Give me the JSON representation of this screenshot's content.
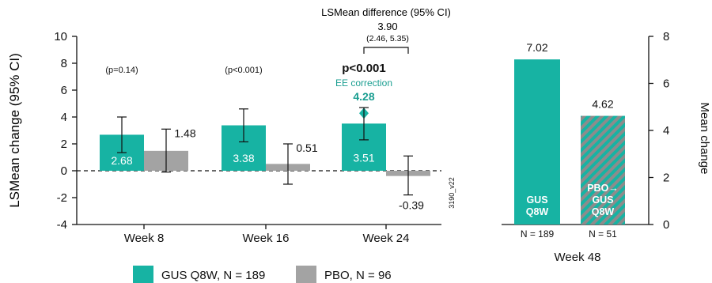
{
  "colors": {
    "gus": "#17b3a3",
    "pbo": "#a3a3a3",
    "stripe": "#8c8c8c",
    "accent": "#1a9e91",
    "axis": "#111111"
  },
  "chart_data": [
    {
      "type": "bar",
      "categories": [
        "Week 8",
        "Week 16",
        "Week 24"
      ],
      "ylabel": "LSMean change (95% CI)",
      "ylim": [
        -4,
        10
      ],
      "yticks": [
        -4,
        -2,
        0,
        2,
        4,
        6,
        8,
        10
      ],
      "ytick_labels": [
        "-4",
        "-2",
        "0",
        "2",
        "4",
        "6",
        "8",
        "10"
      ],
      "baseline": 0,
      "series": [
        {
          "name": "GUS Q8W, N = 189",
          "values": [
            2.68,
            3.38,
            3.51
          ],
          "labels": [
            "2.68",
            "3.38",
            "3.51"
          ],
          "ci_low": [
            1.35,
            2.15,
            2.3
          ],
          "ci_high": [
            4.0,
            4.6,
            4.7
          ]
        },
        {
          "name": "PBO, N = 96",
          "values": [
            1.48,
            0.51,
            -0.39
          ],
          "labels": [
            "1.48",
            "0.51",
            "-0.39"
          ],
          "ci_low": [
            -0.1,
            -1.0,
            -1.8
          ],
          "ci_high": [
            3.1,
            2.0,
            1.1
          ]
        }
      ],
      "pvalues": [
        "(p=0.14)",
        "(p<0.001)",
        "p<0.001"
      ],
      "annotations": {
        "difference_header": "LSMean difference (95% CI)",
        "difference_value": "3.90",
        "difference_ci": "(2.46, 5.35)",
        "ee_label": "EE correction",
        "ee_value": "4.28",
        "ee_numeric": 4.28,
        "code": "3190_v22"
      },
      "legend": [
        {
          "label": "GUS Q8W, N = 189"
        },
        {
          "label": "PBO, N = 96"
        }
      ]
    },
    {
      "type": "bar",
      "categories": [
        "GUS Q8W",
        "PBO→GUS Q8W"
      ],
      "values": [
        7.02,
        4.62
      ],
      "value_labels": [
        "7.02",
        "4.62"
      ],
      "bar_text": [
        [
          "GUS",
          "Q8W"
        ],
        [
          "PBO→",
          "GUS",
          "Q8W"
        ]
      ],
      "n_labels": [
        "N = 189",
        "N = 51"
      ],
      "xlabel": "Week 48",
      "ylabel": "Mean change",
      "ylim": [
        0,
        8
      ],
      "yticks": [
        0,
        2,
        4,
        6,
        8
      ],
      "ytick_labels": [
        "0",
        "2",
        "4",
        "6",
        "8"
      ],
      "y_axis_side": "right"
    }
  ]
}
